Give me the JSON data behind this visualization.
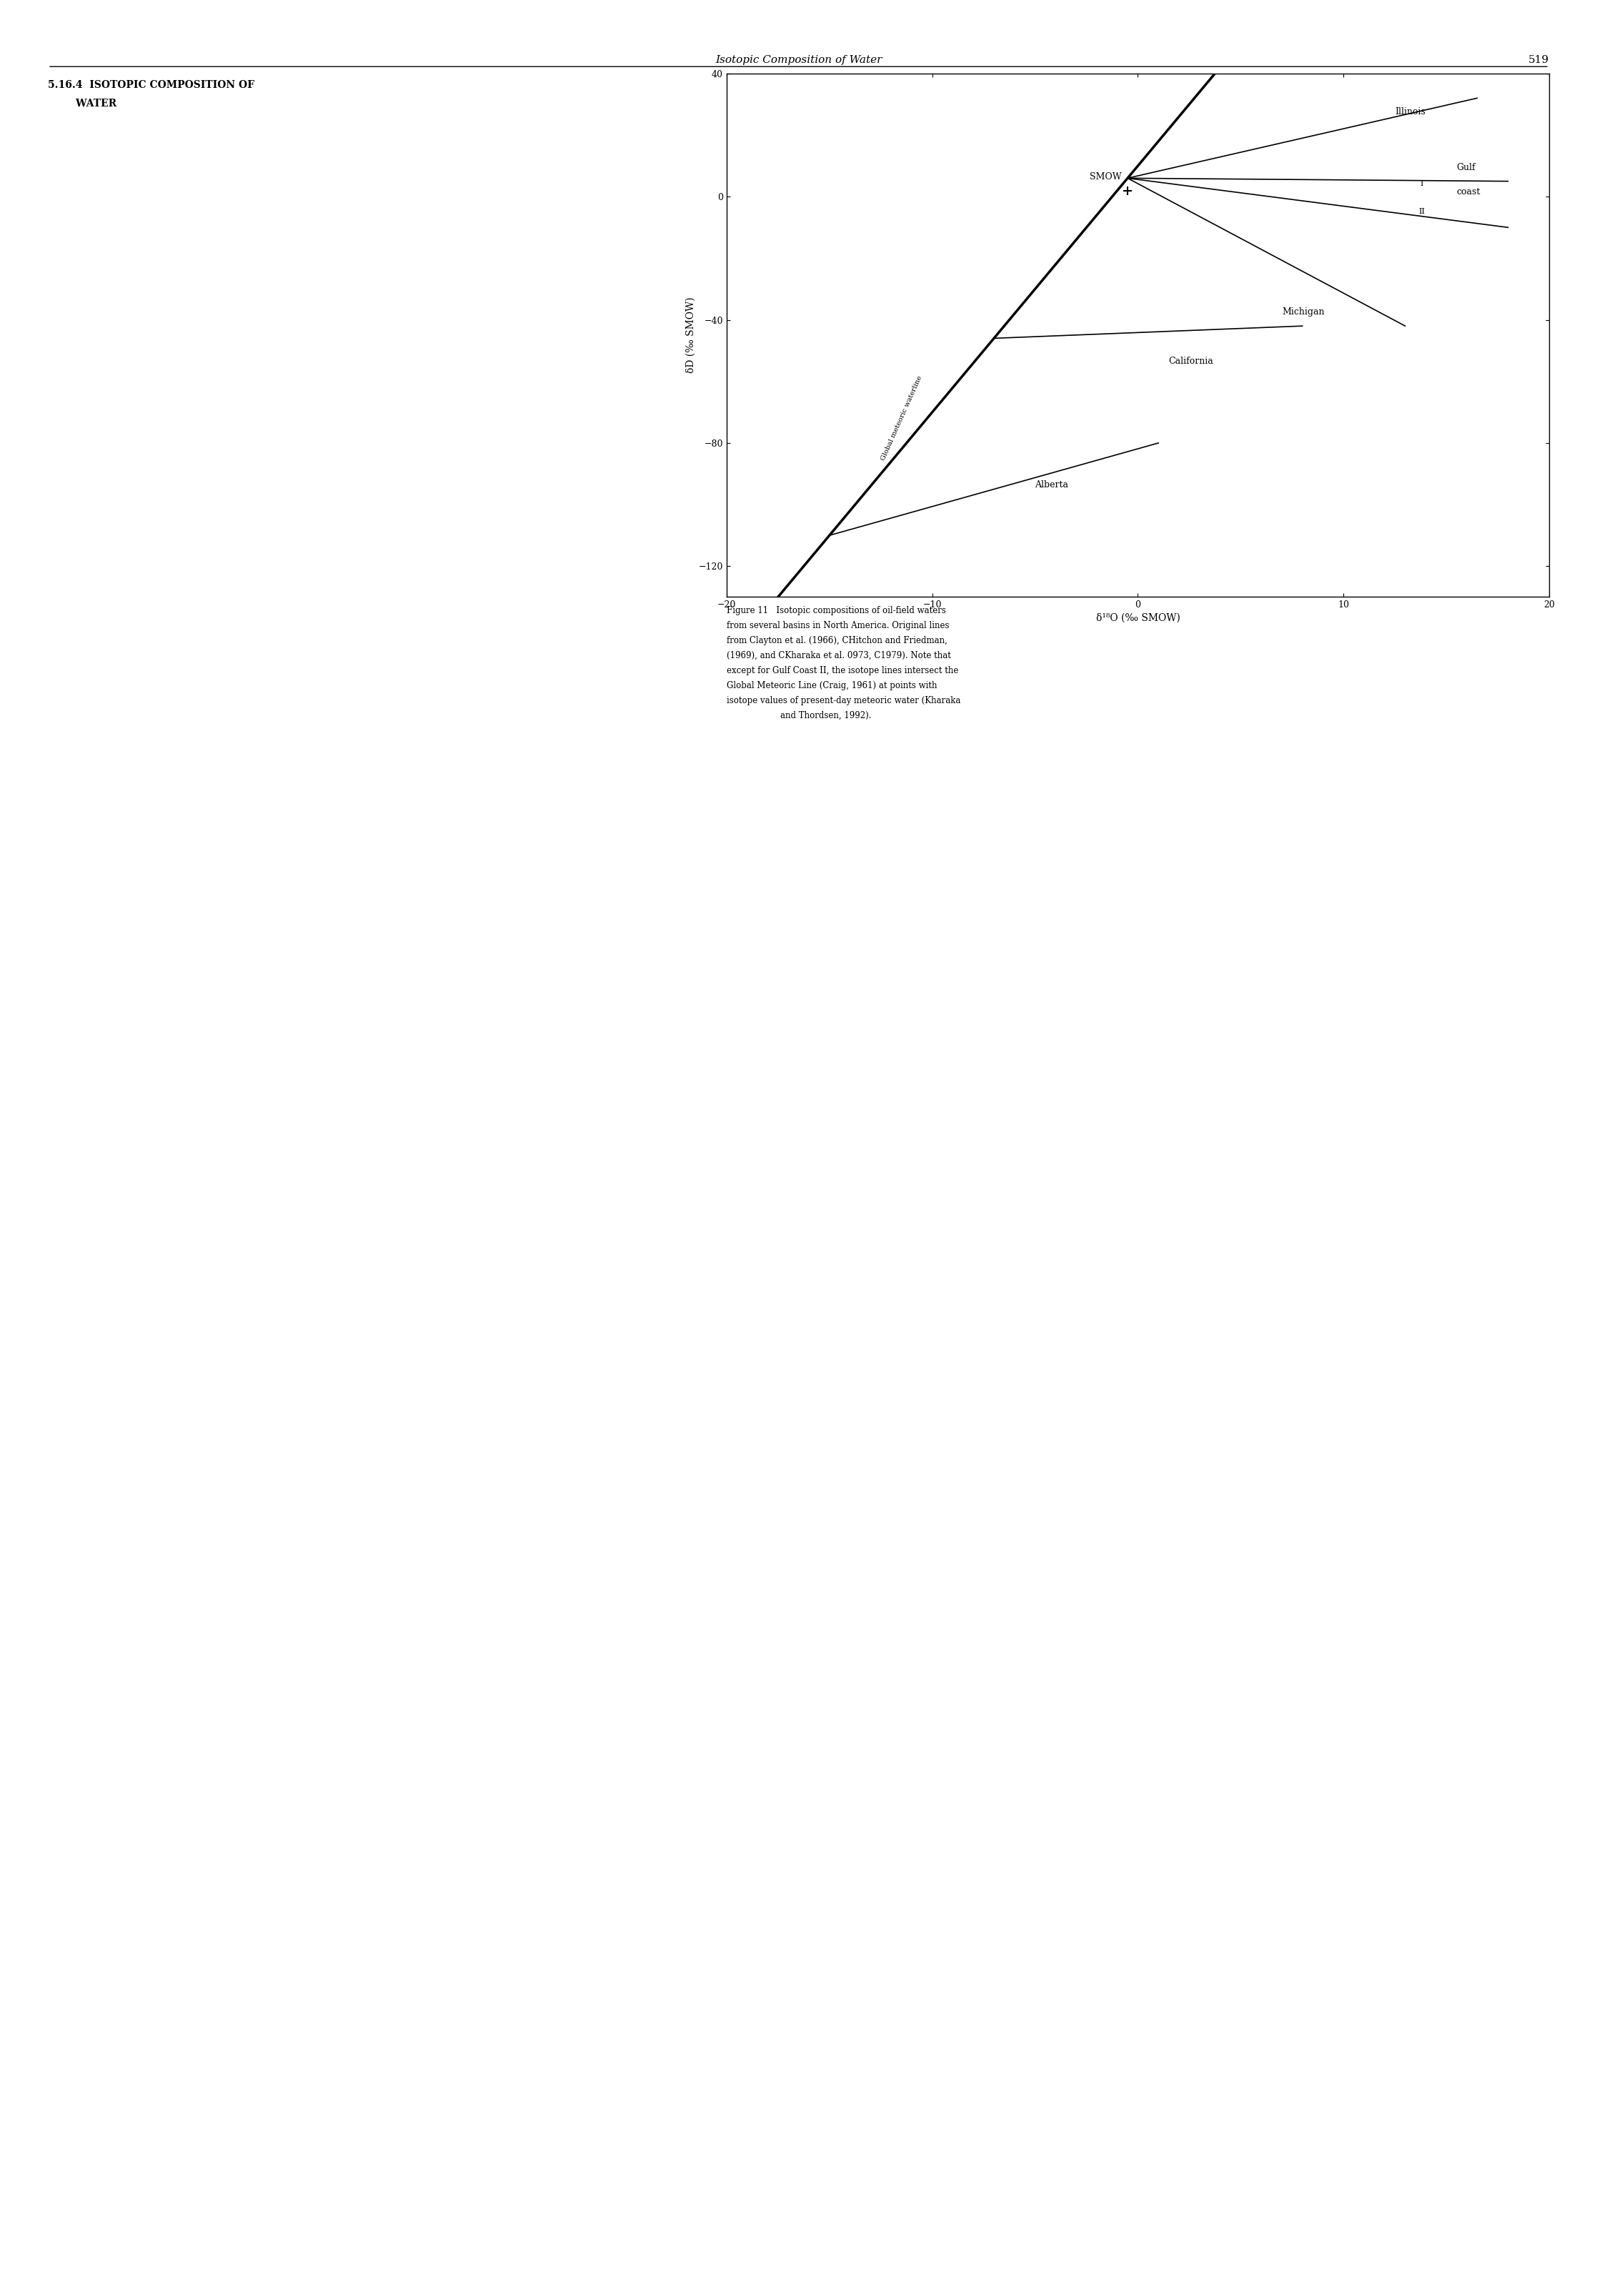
{
  "title": "Isotopic Composition of Water",
  "page_number": "519",
  "xlim": [
    -20,
    20
  ],
  "ylim": [
    -130,
    40
  ],
  "xlabel": "δ¹⁸O (‰ SMOW)",
  "ylabel": "δD (‰ SMOW)",
  "xticks": [
    -20,
    -10,
    0,
    10,
    20
  ],
  "yticks": [
    -120,
    -80,
    -40,
    0,
    40
  ],
  "smow_label": "SMOW",
  "smow_x": -0.5,
  "smow_y": 2,
  "global_meteoric_label": "Global meteoric waterline",
  "background_color": "#ffffff",
  "figure_caption": "Figure 11   Isotopic compositions of oil-field waters from several basins in North America. Original lines from Clayton et al. (1966), CHitchon and Friedman, (1969), and CKharaka et al. 0973, C1979). Note that except for Gulf Coast II, the isotope lines intersect the Global Meteoric Line (Craig, 1961) at points with isotope values of present-day meteoric water (Kharaka and Thordsen, 1992)."
}
